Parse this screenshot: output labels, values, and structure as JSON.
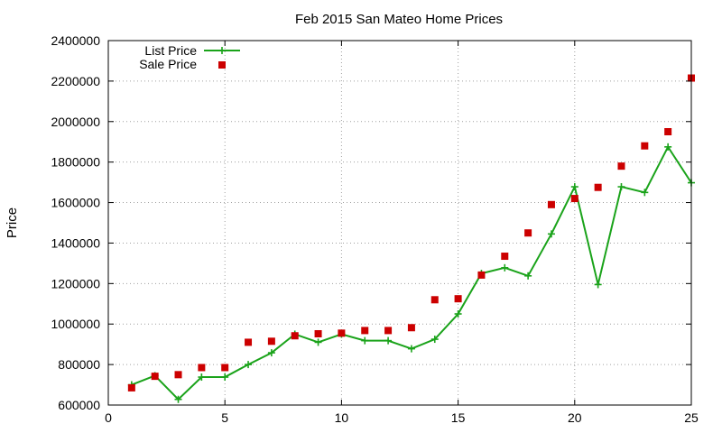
{
  "chart_data": {
    "type": "line",
    "title": "Feb 2015 San Mateo Home Prices",
    "ylabel": "Price",
    "xlabel": "",
    "xlim": [
      0,
      25
    ],
    "ylim": [
      600000,
      2400000
    ],
    "x_ticks": [
      0,
      5,
      10,
      15,
      20,
      25
    ],
    "y_ticks": [
      600000,
      800000,
      1000000,
      1200000,
      1400000,
      1600000,
      1800000,
      2000000,
      2200000,
      2400000
    ],
    "grid": true,
    "legend_position": "top-left",
    "x": [
      1,
      2,
      3,
      4,
      5,
      6,
      7,
      8,
      9,
      10,
      11,
      12,
      13,
      14,
      15,
      16,
      17,
      18,
      19,
      20,
      21,
      22,
      23,
      24,
      25
    ],
    "series": [
      {
        "name": "List Price",
        "style": "line-with-plus-markers",
        "color": "#1aa31a",
        "values": [
          700000,
          745000,
          628000,
          738000,
          738000,
          800000,
          858000,
          950000,
          910000,
          950000,
          918000,
          918000,
          878000,
          925000,
          1050000,
          1250000,
          1278000,
          1238000,
          1445000,
          1678000,
          1195000,
          1678000,
          1650000,
          1875000,
          1698000
        ]
      },
      {
        "name": "Sale Price",
        "style": "square-markers",
        "color": "#cc0000",
        "values": [
          685000,
          742000,
          750000,
          785000,
          785000,
          910000,
          915000,
          942000,
          952000,
          955000,
          968000,
          968000,
          982000,
          1120000,
          1125000,
          1242000,
          1335000,
          1450000,
          1590000,
          1620000,
          1675000,
          1780000,
          1880000,
          1950000,
          2215000
        ]
      }
    ]
  }
}
